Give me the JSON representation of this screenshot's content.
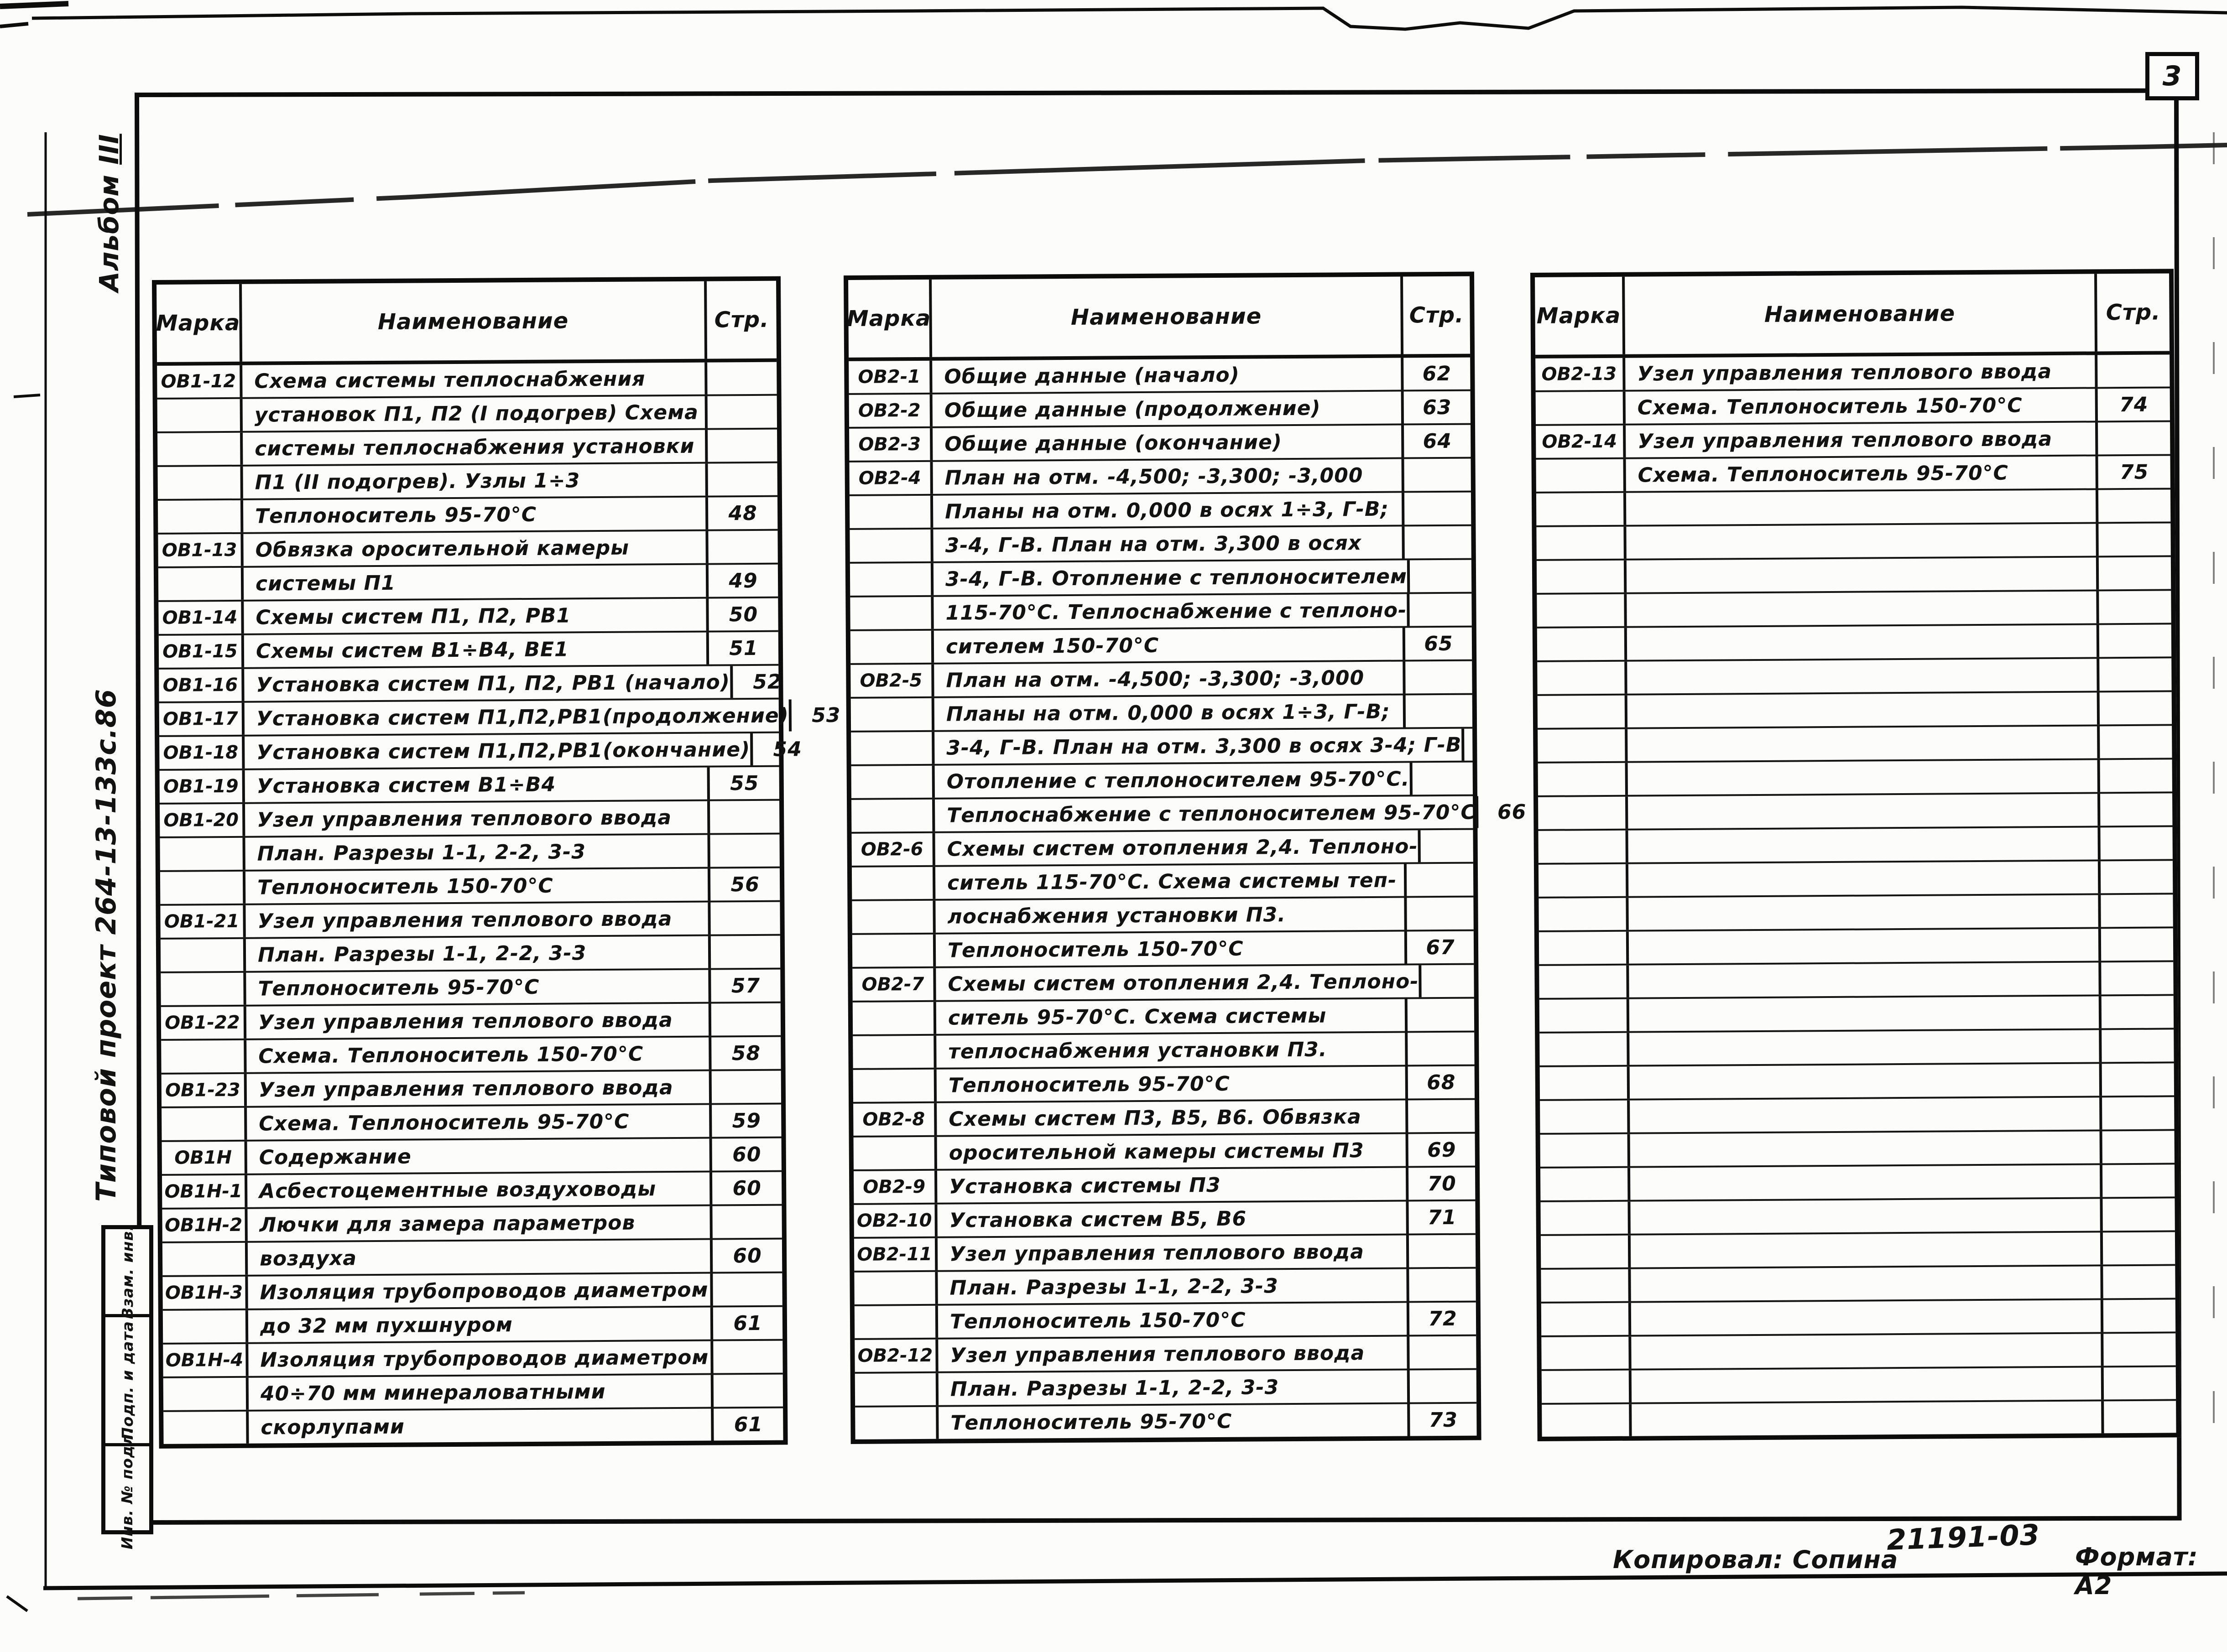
{
  "page": {
    "number": "3",
    "album_word": "Альбом",
    "album_numeral": "III",
    "project_label": "Типовой проект 264-13-133с.86"
  },
  "columns": {
    "mark": "Марка",
    "name": "Наименование",
    "page": "Стр."
  },
  "stamp": {
    "cells": [
      "Взам. инв.",
      "Подп. и дата",
      "Инв. № подл."
    ]
  },
  "footer": {
    "copied_label": "Копировал: Сопина",
    "doc_number": "21191-03",
    "format_label": "Формат: А2"
  },
  "tables": [
    {
      "rows": [
        [
          "ОВ1-12",
          "Схема системы теплоснабжения",
          ""
        ],
        [
          "",
          "установок П1, П2 (I подогрев) Схема",
          ""
        ],
        [
          "",
          "системы теплоснабжения установки",
          ""
        ],
        [
          "",
          "П1 (II подогрев). Узлы 1÷3",
          ""
        ],
        [
          "",
          "Теплоноситель 95-70°С",
          "48"
        ],
        [
          "ОВ1-13",
          "Обвязка оросительной камеры",
          ""
        ],
        [
          "",
          "системы П1",
          "49"
        ],
        [
          "ОВ1-14",
          "Схемы систем П1, П2, РВ1",
          "50"
        ],
        [
          "ОВ1-15",
          "Схемы систем В1÷В4, ВЕ1",
          "51"
        ],
        [
          "ОВ1-16",
          "Установка систем П1, П2, РВ1 (начало)",
          "52"
        ],
        [
          "ОВ1-17",
          "Установка систем П1,П2,РВ1(продолжение)",
          "53"
        ],
        [
          "ОВ1-18",
          "Установка систем П1,П2,РВ1(окончание)",
          "54"
        ],
        [
          "ОВ1-19",
          "Установка систем В1÷В4",
          "55"
        ],
        [
          "ОВ1-20",
          "Узел управления теплового ввода",
          ""
        ],
        [
          "",
          "План. Разрезы 1-1, 2-2, 3-3",
          ""
        ],
        [
          "",
          "Теплоноситель 150-70°С",
          "56"
        ],
        [
          "ОВ1-21",
          "Узел управления теплового ввода",
          ""
        ],
        [
          "",
          "План. Разрезы 1-1, 2-2, 3-3",
          ""
        ],
        [
          "",
          "Теплоноситель 95-70°С",
          "57"
        ],
        [
          "ОВ1-22",
          "Узел управления теплового ввода",
          ""
        ],
        [
          "",
          "Схема. Теплоноситель 150-70°С",
          "58"
        ],
        [
          "ОВ1-23",
          "Узел управления теплового ввода",
          ""
        ],
        [
          "",
          "Схема. Теплоноситель 95-70°С",
          "59"
        ],
        [
          "ОВ1Н",
          "Содержание",
          "60"
        ],
        [
          "ОВ1Н-1",
          "Асбестоцементные воздуховоды",
          "60"
        ],
        [
          "ОВ1Н-2",
          "Лючки для замера параметров",
          ""
        ],
        [
          "",
          "воздуха",
          "60"
        ],
        [
          "ОВ1Н-3",
          "Изоляция трубопроводов диаметром",
          ""
        ],
        [
          "",
          "до 32 мм пухшнуром",
          "61"
        ],
        [
          "ОВ1Н-4",
          "Изоляция трубопроводов диаметром",
          ""
        ],
        [
          "",
          "40÷70 мм минераловатными",
          ""
        ],
        [
          "",
          "скорлупами",
          "61"
        ]
      ]
    },
    {
      "rows": [
        [
          "ОВ2-1",
          "Общие данные (начало)",
          "62"
        ],
        [
          "ОВ2-2",
          "Общие данные (продолжение)",
          "63"
        ],
        [
          "ОВ2-3",
          "Общие данные (окончание)",
          "64"
        ],
        [
          "ОВ2-4",
          "План на отм. -4,500; -3,300; -3,000",
          ""
        ],
        [
          "",
          "Планы на отм. 0,000 в осях 1÷3, Г-В;",
          ""
        ],
        [
          "",
          "3-4, Г-В. План на отм. 3,300 в осях",
          ""
        ],
        [
          "",
          "3-4, Г-В. Отопление с теплоносителем",
          ""
        ],
        [
          "",
          "115-70°С. Теплоснабжение с теплоно-",
          ""
        ],
        [
          "",
          "сителем 150-70°С",
          "65"
        ],
        [
          "ОВ2-5",
          "План на отм. -4,500; -3,300; -3,000",
          ""
        ],
        [
          "",
          "Планы на отм. 0,000 в осях 1÷3, Г-В;",
          ""
        ],
        [
          "",
          "3-4, Г-В. План на отм. 3,300 в осях 3-4; Г-В",
          ""
        ],
        [
          "",
          "Отопление с теплоносителем 95-70°С.",
          ""
        ],
        [
          "",
          "Теплоснабжение с теплоносителем 95-70°С",
          "66"
        ],
        [
          "ОВ2-6",
          "Схемы систем отопления 2,4. Теплоно-",
          ""
        ],
        [
          "",
          "ситель 115-70°С. Схема системы теп-",
          ""
        ],
        [
          "",
          "лоснабжения установки П3.",
          ""
        ],
        [
          "",
          "Теплоноситель 150-70°С",
          "67"
        ],
        [
          "ОВ2-7",
          "Схемы систем отопления 2,4. Теплоно-",
          ""
        ],
        [
          "",
          "ситель 95-70°С. Схема системы",
          ""
        ],
        [
          "",
          "теплоснабжения установки П3.",
          ""
        ],
        [
          "",
          "Теплоноситель 95-70°С",
          "68"
        ],
        [
          "ОВ2-8",
          "Схемы систем П3, В5, В6. Обвязка",
          ""
        ],
        [
          "",
          "оросительной камеры системы П3",
          "69"
        ],
        [
          "ОВ2-9",
          "Установка системы П3",
          "70"
        ],
        [
          "ОВ2-10",
          "Установка систем В5, В6",
          "71"
        ],
        [
          "ОВ2-11",
          "Узел управления теплового ввода",
          ""
        ],
        [
          "",
          "План. Разрезы 1-1, 2-2, 3-3",
          ""
        ],
        [
          "",
          "Теплоноситель 150-70°С",
          "72"
        ],
        [
          "ОВ2-12",
          "Узел управления теплового ввода",
          ""
        ],
        [
          "",
          "План. Разрезы 1-1, 2-2, 3-3",
          ""
        ],
        [
          "",
          "Теплоноситель 95-70°С",
          "73"
        ]
      ]
    },
    {
      "rows": [
        [
          "ОВ2-13",
          "Узел управления теплового ввода",
          ""
        ],
        [
          "",
          "Схема. Теплоноситель 150-70°С",
          "74"
        ],
        [
          "ОВ2-14",
          "Узел управления теплового ввода",
          ""
        ],
        [
          "",
          "Схема. Теплоноситель 95-70°С",
          "75"
        ]
      ],
      "empty_rows": 28
    }
  ]
}
